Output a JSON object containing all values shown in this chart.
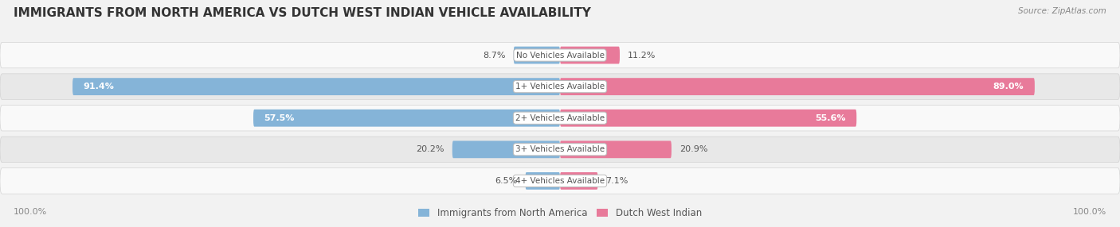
{
  "title": "IMMIGRANTS FROM NORTH AMERICA VS DUTCH WEST INDIAN VEHICLE AVAILABILITY",
  "source": "Source: ZipAtlas.com",
  "categories": [
    "No Vehicles Available",
    "1+ Vehicles Available",
    "2+ Vehicles Available",
    "3+ Vehicles Available",
    "4+ Vehicles Available"
  ],
  "north_america_values": [
    8.7,
    91.4,
    57.5,
    20.2,
    6.5
  ],
  "dutch_west_indian_values": [
    11.2,
    89.0,
    55.6,
    20.9,
    7.1
  ],
  "north_america_color": "#85b4d8",
  "dutch_west_indian_color": "#e87a9a",
  "north_america_label": "Immigrants from North America",
  "dutch_west_indian_label": "Dutch West Indian",
  "background_color": "#f2f2f2",
  "row_bg_light": "#f9f9f9",
  "row_bg_dark": "#e8e8e8",
  "max_value": 100.0,
  "title_fontsize": 11,
  "value_fontsize": 8,
  "cat_fontsize": 7.5,
  "footer_fontsize": 8,
  "title_color": "#333333",
  "text_color": "#555555",
  "source_color": "#888888",
  "footer_text_color": "#888888"
}
